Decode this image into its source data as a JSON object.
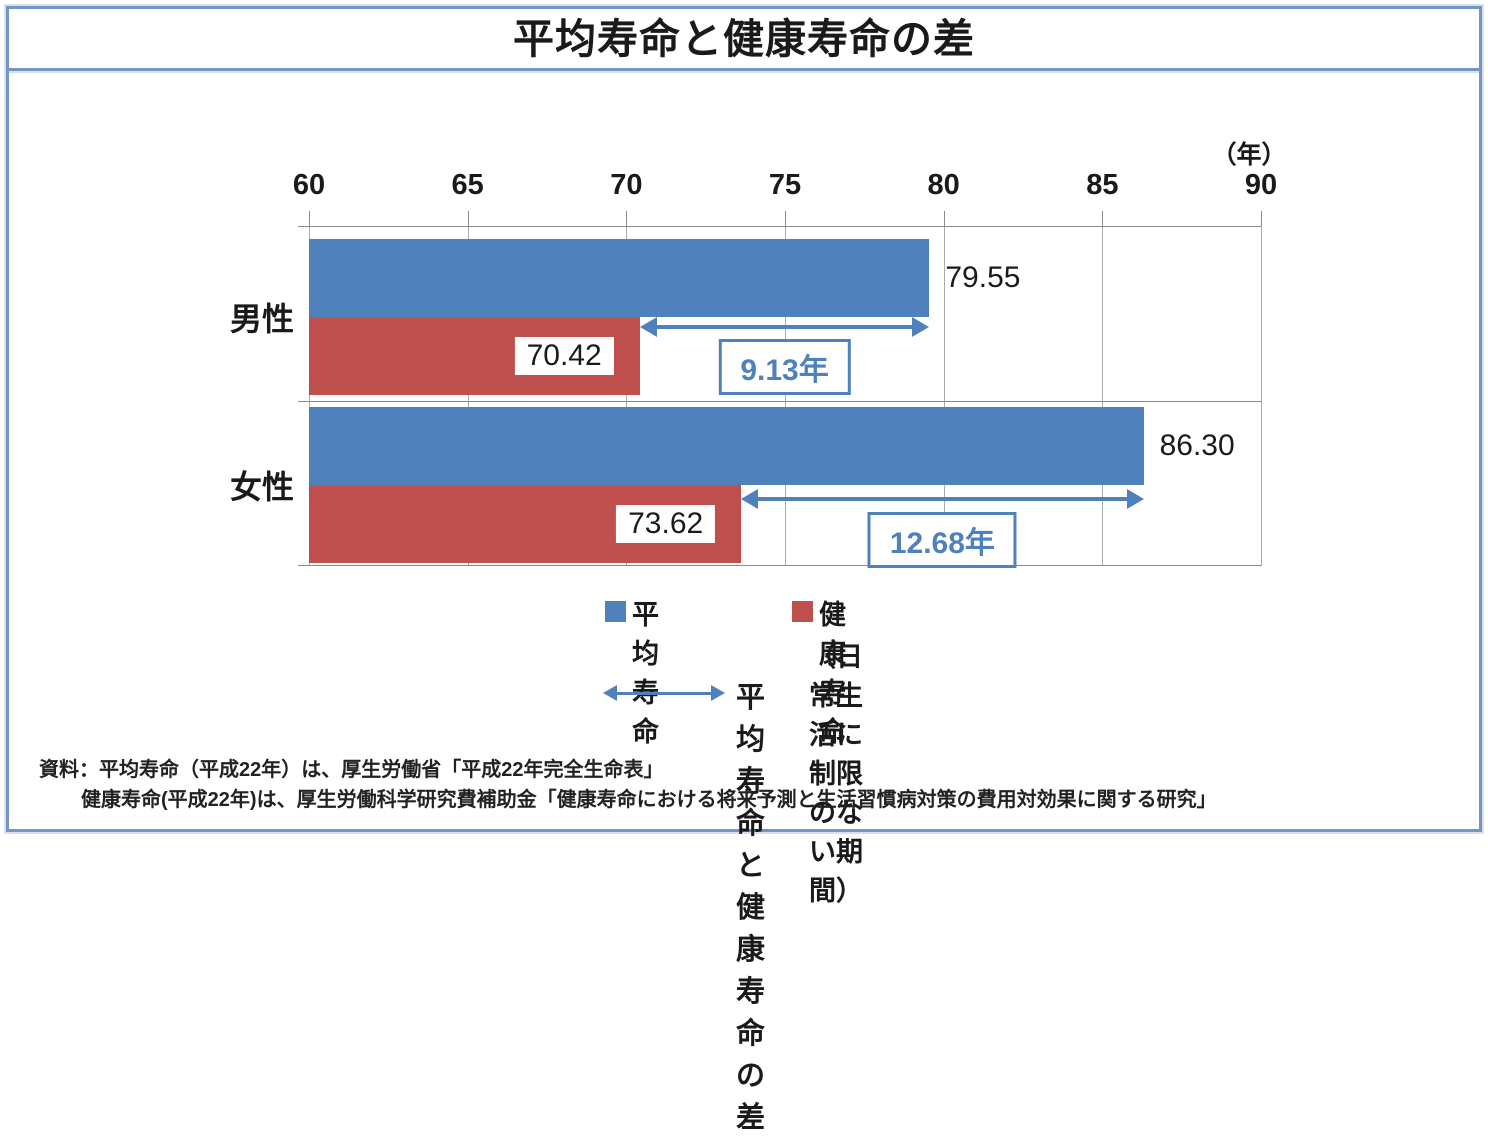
{
  "title": "平均寿命と健康寿命の差",
  "colors": {
    "accent": "#4F81BD",
    "bar_blue": "#4F81BD",
    "bar_red": "#C0504D",
    "frame_border": "#7396C5"
  },
  "axis": {
    "unit_label": "（年）",
    "min": 60,
    "max": 90,
    "step": 5,
    "tick_labels": [
      "60",
      "65",
      "70",
      "75",
      "80",
      "85",
      "90"
    ]
  },
  "chart_data": {
    "type": "bar",
    "orientation": "horizontal",
    "title": "平均寿命と健康寿命の差",
    "categories": [
      "男性",
      "女性"
    ],
    "series": [
      {
        "name": "平均寿命",
        "color": "#4F81BD",
        "values": [
          79.55,
          86.3
        ],
        "display": [
          "79.55",
          "86.30"
        ]
      },
      {
        "name": "健康寿命",
        "color": "#C0504D",
        "values": [
          70.42,
          73.62
        ],
        "display": [
          "70.42",
          "73.62"
        ]
      }
    ],
    "differences": [
      {
        "value": 9.13,
        "label": "9.13年"
      },
      {
        "value": 12.68,
        "label": "12.68年"
      }
    ],
    "xlim": [
      60,
      90
    ],
    "x_unit": "年",
    "grid": true,
    "legend_position": "bottom"
  },
  "legend": {
    "avg_label": "平均寿命",
    "healthy_label": "健康寿命",
    "healthy_note": "（日常生活に制限のない期間）",
    "diff_label": "平均寿命と健康寿命の差"
  },
  "source": {
    "line1": "資料：平均寿命（平成22年）は、厚生労働省「平成22年完全生命表」",
    "line2": "健康寿命(平成22年)は、厚生労働科学研究費補助金「健康寿命における将来予測と生活習慣病対策の費用対効果に関する研究」"
  }
}
